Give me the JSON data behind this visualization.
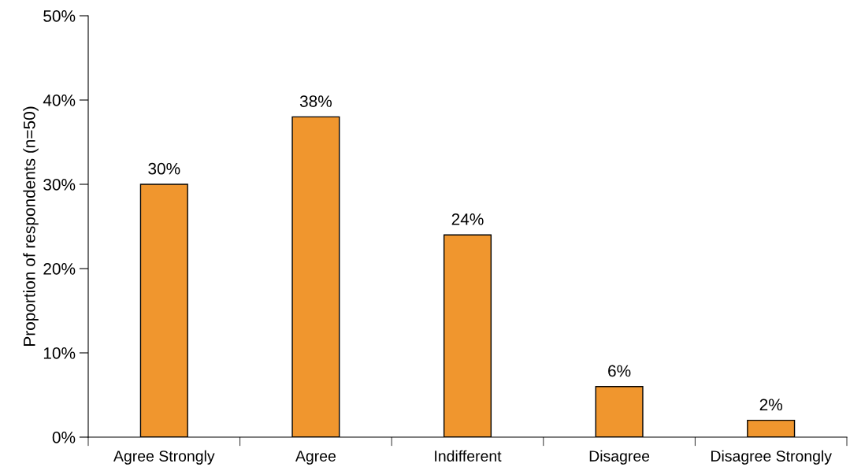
{
  "chart_data": {
    "type": "bar",
    "ylabel": "Proportion of respondents (n=50)",
    "categories": [
      "Agree Strongly",
      "Agree",
      "Indifferent",
      "Disagree",
      "Disagree Strongly"
    ],
    "values": [
      30,
      38,
      24,
      6,
      2
    ],
    "value_labels": [
      "30%",
      "38%",
      "24%",
      "6%",
      "2%"
    ],
    "color": "#f0962e",
    "ylim": [
      0,
      50
    ],
    "yticks": [
      {
        "value": 0,
        "label": "0%"
      },
      {
        "value": 10,
        "label": "10%"
      },
      {
        "value": 20,
        "label": "20%"
      },
      {
        "value": 30,
        "label": "30%"
      },
      {
        "value": 40,
        "label": "40%"
      },
      {
        "value": 50,
        "label": "50%"
      }
    ],
    "grid": false,
    "legend": false
  }
}
